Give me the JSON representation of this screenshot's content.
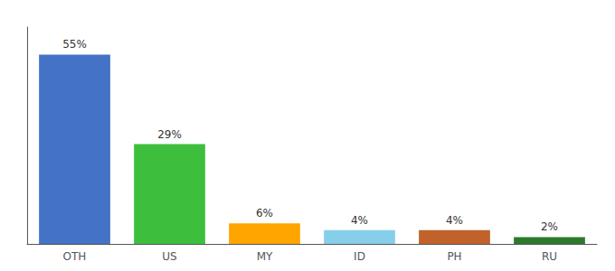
{
  "chart_data": {
    "type": "bar",
    "categories": [
      "OTH",
      "US",
      "MY",
      "ID",
      "PH",
      "RU"
    ],
    "values": [
      55,
      29,
      6,
      4,
      4,
      2
    ],
    "value_labels": [
      "55%",
      "29%",
      "6%",
      "4%",
      "4%",
      "2%"
    ],
    "colors": [
      "#4472C4",
      "#3DBF3D",
      "#FFA500",
      "#87CEEB",
      "#C0622A",
      "#2D7A2D"
    ],
    "ylim": [
      0,
      63
    ],
    "grid": false,
    "data_labels": true,
    "tick_labels": "x"
  }
}
